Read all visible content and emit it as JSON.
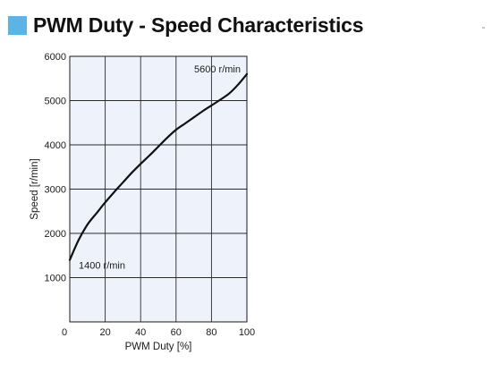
{
  "header": {
    "title": "PWM Duty - Speed Characteristics",
    "accent_color": "#5ab4e6"
  },
  "chart_data": {
    "type": "line",
    "title": "PWM Duty - Speed Characteristics",
    "xlabel": "PWM Duty [%]",
    "ylabel": "Speed [r/min]",
    "xlim": [
      0,
      100
    ],
    "ylim": [
      0,
      6000
    ],
    "x_ticks": [
      "0",
      "20",
      "40",
      "60",
      "80",
      "100"
    ],
    "y_ticks": [
      "0",
      "1000",
      "2000",
      "3000",
      "4000",
      "5000",
      "6000"
    ],
    "grid": true,
    "plot_background": "#eef2fb",
    "line_color": "#111111",
    "series": [
      {
        "x": [
          0,
          5,
          10,
          15,
          20,
          25,
          30,
          35,
          40,
          45,
          50,
          55,
          60,
          65,
          70,
          75,
          80,
          85,
          90,
          95,
          100
        ],
        "values": [
          1400,
          1850,
          2200,
          2450,
          2700,
          2930,
          3150,
          3370,
          3570,
          3760,
          3960,
          4160,
          4340,
          4480,
          4620,
          4760,
          4890,
          5020,
          5160,
          5360,
          5600
        ]
      }
    ],
    "annotations": [
      {
        "text": "5600 r/min",
        "x": 100,
        "y": 5600
      },
      {
        "text": "1400 r/min",
        "x": 0,
        "y": 1400
      }
    ]
  }
}
